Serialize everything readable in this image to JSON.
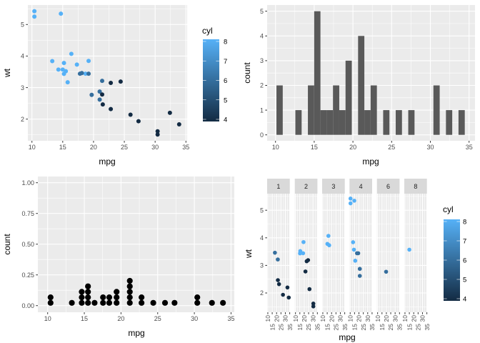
{
  "chart_data": [
    {
      "type": "scatter",
      "xlabel": "mpg",
      "ylabel": "wt",
      "xticks": [
        "10",
        "15",
        "20",
        "25",
        "30",
        "35"
      ],
      "yticks": [
        "2",
        "3",
        "4",
        "5"
      ],
      "grid": true,
      "legend": {
        "title": "cyl",
        "labels": [
          "4",
          "5",
          "6",
          "7",
          "8"
        ],
        "low": "#132B43",
        "high": "#56B1F7",
        "placement": "right"
      },
      "mpg": [
        21.0,
        21.0,
        22.8,
        21.4,
        18.7,
        18.1,
        14.3,
        24.4,
        22.8,
        19.2,
        17.8,
        16.4,
        17.3,
        15.2,
        10.4,
        10.4,
        14.7,
        32.4,
        30.4,
        33.9,
        21.5,
        15.5,
        15.2,
        13.3,
        19.2,
        27.3,
        26.0,
        30.4,
        15.8,
        19.7,
        15.0,
        21.4
      ],
      "wt": [
        2.62,
        2.875,
        2.32,
        3.215,
        3.44,
        3.46,
        3.57,
        3.19,
        3.15,
        3.44,
        3.44,
        4.07,
        3.73,
        3.78,
        5.25,
        5.424,
        5.345,
        2.2,
        1.615,
        1.835,
        2.465,
        3.52,
        3.435,
        3.84,
        3.845,
        1.935,
        2.14,
        1.513,
        3.17,
        2.77,
        3.57,
        2.78
      ],
      "cyl": [
        6,
        6,
        4,
        6,
        8,
        6,
        8,
        4,
        4,
        6,
        6,
        8,
        8,
        8,
        8,
        8,
        8,
        4,
        4,
        4,
        4,
        8,
        8,
        8,
        8,
        4,
        4,
        4,
        8,
        6,
        8,
        4
      ]
    },
    {
      "type": "bar",
      "subtype": "histogram",
      "xlabel": "mpg",
      "ylabel": "count",
      "xticks": [
        "10",
        "15",
        "20",
        "25",
        "30",
        "35"
      ],
      "yticks": [
        "0",
        "1",
        "2",
        "3",
        "4",
        "5"
      ],
      "grid": true,
      "bar_color": "#595959",
      "bin_width": 0.81,
      "bin_centers": [
        10.53,
        11.35,
        12.16,
        12.97,
        13.78,
        14.59,
        15.4,
        16.21,
        17.02,
        17.83,
        18.64,
        19.45,
        20.26,
        21.07,
        21.88,
        22.69,
        23.5,
        24.31,
        25.12,
        25.93,
        26.74,
        27.55,
        28.37,
        29.18,
        29.99,
        30.8,
        31.61,
        32.42,
        33.23,
        34.04
      ],
      "counts": [
        2,
        0,
        0,
        1,
        0,
        2,
        5,
        1,
        1,
        2,
        1,
        3,
        0,
        4,
        1,
        2,
        0,
        1,
        0,
        1,
        0,
        1,
        0,
        0,
        0,
        2,
        0,
        1,
        0,
        1
      ]
    },
    {
      "type": "scatter",
      "subtype": "dotplot",
      "xlabel": "mpg",
      "ylabel": "count",
      "xticks": [
        "10",
        "15",
        "20",
        "25",
        "30",
        "35"
      ],
      "yticks": [
        "0.00",
        "0.25",
        "0.50",
        "0.75",
        "1.00"
      ],
      "grid": true,
      "dot_color": "#000000",
      "stacks": [
        {
          "x": 10.4,
          "n": 2
        },
        {
          "x": 13.3,
          "n": 1
        },
        {
          "x": 14.65,
          "n": 3
        },
        {
          "x": 15.5,
          "n": 4
        },
        {
          "x": 16.4,
          "n": 1
        },
        {
          "x": 17.55,
          "n": 2
        },
        {
          "x": 18.4,
          "n": 2
        },
        {
          "x": 19.4,
          "n": 3
        },
        {
          "x": 21.2,
          "n": 5
        },
        {
          "x": 22.8,
          "n": 2
        },
        {
          "x": 24.4,
          "n": 1
        },
        {
          "x": 26.0,
          "n": 1
        },
        {
          "x": 27.3,
          "n": 1
        },
        {
          "x": 30.4,
          "n": 2
        },
        {
          "x": 32.4,
          "n": 1
        },
        {
          "x": 33.9,
          "n": 1
        }
      ]
    },
    {
      "type": "scatter",
      "subtype": "facet",
      "xlabel": "mpg",
      "ylabel": "wt",
      "xticks": [
        "10",
        "15",
        "20",
        "25",
        "30",
        "35"
      ],
      "yticks": [
        "2",
        "3",
        "4",
        "5"
      ],
      "grid": true,
      "legend": {
        "title": "cyl",
        "labels": [
          "4",
          "5",
          "6",
          "7",
          "8"
        ],
        "low": "#132B43",
        "high": "#56B1F7",
        "placement": "right"
      },
      "facets": [
        {
          "label": "1",
          "mpg": [
            22.8,
            21.4,
            18.1,
            32.4,
            33.9,
            21.5,
            27.3
          ],
          "wt": [
            2.32,
            3.215,
            3.46,
            2.2,
            1.835,
            2.465,
            1.935
          ],
          "cyl": [
            4,
            6,
            6,
            4,
            4,
            4,
            4
          ]
        },
        {
          "label": "2",
          "mpg": [
            18.7,
            24.4,
            22.8,
            30.4,
            15.5,
            15.2,
            19.2,
            26.0,
            30.4,
            21.4
          ],
          "wt": [
            3.44,
            3.19,
            3.15,
            1.615,
            3.52,
            3.435,
            3.845,
            2.14,
            1.513,
            2.78
          ],
          "cyl": [
            8,
            4,
            4,
            4,
            8,
            8,
            8,
            4,
            4,
            4
          ]
        },
        {
          "label": "3",
          "mpg": [
            16.4,
            17.3,
            15.2
          ],
          "wt": [
            4.07,
            3.73,
            3.78
          ],
          "cyl": [
            8,
            8,
            8
          ]
        },
        {
          "label": "4",
          "mpg": [
            21.0,
            21.0,
            14.3,
            19.2,
            17.8,
            10.4,
            10.4,
            14.7,
            13.3,
            15.8
          ],
          "wt": [
            2.62,
            2.875,
            3.57,
            3.44,
            3.44,
            5.25,
            5.424,
            5.345,
            3.84,
            3.17
          ],
          "cyl": [
            6,
            6,
            8,
            6,
            6,
            8,
            8,
            8,
            8,
            8
          ]
        },
        {
          "label": "6",
          "mpg": [
            19.7
          ],
          "wt": [
            2.77
          ],
          "cyl": [
            6
          ]
        },
        {
          "label": "8",
          "mpg": [
            15.0
          ],
          "wt": [
            3.57
          ],
          "cyl": [
            8
          ]
        }
      ]
    }
  ]
}
